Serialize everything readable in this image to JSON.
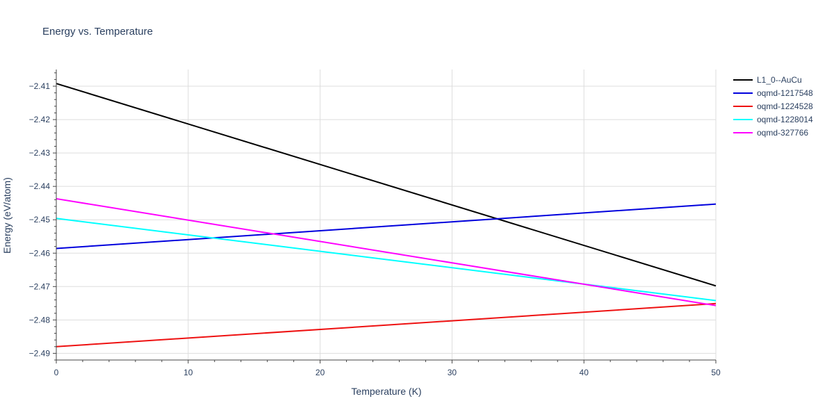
{
  "chart_data": {
    "type": "line",
    "title": "Energy vs. Temperature",
    "xlabel": "Temperature (K)",
    "ylabel": "Energy (eV/atom)",
    "xlim": [
      0,
      50
    ],
    "ylim": [
      -2.492,
      -2.405
    ],
    "xticks": [
      0,
      10,
      20,
      30,
      40,
      50
    ],
    "xtick_labels": [
      "0",
      "10",
      "20",
      "30",
      "40",
      "50"
    ],
    "yticks": [
      -2.41,
      -2.42,
      -2.43,
      -2.44,
      -2.45,
      -2.46,
      -2.47,
      -2.48,
      -2.49
    ],
    "ytick_labels": [
      "−2.41",
      "−2.42",
      "−2.43",
      "−2.44",
      "−2.45",
      "−2.46",
      "−2.47",
      "−2.48",
      "−2.49"
    ],
    "grid": true,
    "legend_position": "top-right",
    "series": [
      {
        "name": "L1_0--AuCu",
        "color": "#000000",
        "x": [
          0,
          50
        ],
        "y": [
          -2.4092,
          -2.4698
        ]
      },
      {
        "name": "oqmd-1217548",
        "color": "#0000dd",
        "x": [
          0,
          50
        ],
        "y": [
          -2.4586,
          -2.4453
        ]
      },
      {
        "name": "oqmd-1224528",
        "color": "#ee1111",
        "x": [
          0,
          50
        ],
        "y": [
          -2.488,
          -2.4751
        ]
      },
      {
        "name": "oqmd-1228014",
        "color": "#00ffff",
        "x": [
          0,
          50
        ],
        "y": [
          -2.4496,
          -2.4742
        ]
      },
      {
        "name": "oqmd-327766",
        "color": "#ff00ff",
        "x": [
          0,
          50
        ],
        "y": [
          -2.4437,
          -2.4757
        ]
      }
    ]
  }
}
